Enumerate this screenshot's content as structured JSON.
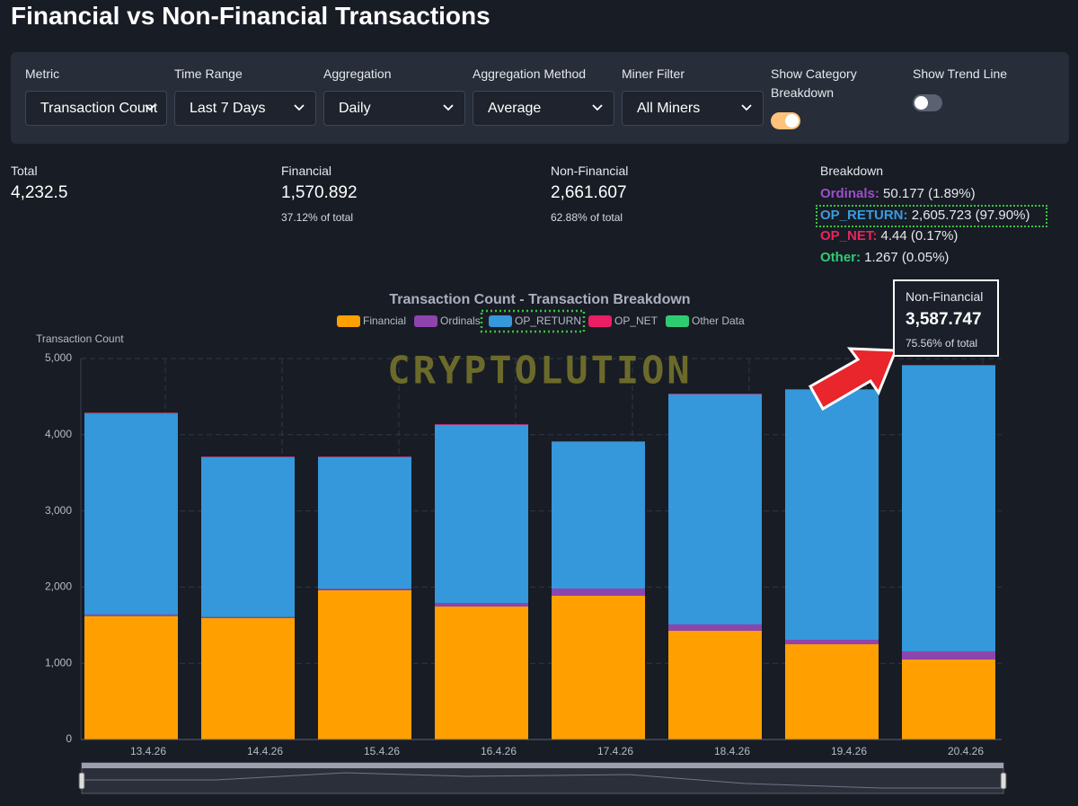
{
  "header": {
    "title": "Financial vs Non-Financial Transactions"
  },
  "controls": [
    {
      "label": "Metric",
      "value": "Transaction Count"
    },
    {
      "label": "Time Range",
      "value": "Last 7 Days"
    },
    {
      "label": "Aggregation",
      "value": "Daily"
    },
    {
      "label": "Aggregation Method",
      "value": "Average"
    },
    {
      "label": "Miner Filter",
      "value": "All Miners"
    }
  ],
  "toggles": [
    {
      "label": "Show Category Breakdown",
      "checked": true
    },
    {
      "label": "Show Trend Line",
      "checked": false
    }
  ],
  "stats": [
    {
      "label": "Total",
      "value": "4,232.5"
    },
    {
      "label": "Financial",
      "value": "1,570.892",
      "sub": "37.12% of total"
    },
    {
      "label": "Non-Financial",
      "value": "2,661.607",
      "sub": "62.88% of total"
    }
  ],
  "breakdown": {
    "label": "Breakdown",
    "items": [
      {
        "name": "Ordinals:",
        "value": "50.177 (1.89%)",
        "color": "#9b4fc9"
      },
      {
        "name": "OP_RETURN:",
        "value": "2,605.723 (97.90%)",
        "color": "#3a9be0"
      },
      {
        "name": "OP_NET:",
        "value": "4.44 (0.17%)",
        "color": "#e9245f"
      },
      {
        "name": "Other:",
        "value": "1.267 (0.05%)",
        "color": "#2ecc71"
      }
    ]
  },
  "tooltip": {
    "label": "Non-Financial",
    "value": "3,587.747",
    "sub": "75.56% of total"
  },
  "chart_data": {
    "type": "bar",
    "stacked": true,
    "title": "Transaction Count - Transaction Breakdown",
    "y_label": "Transaction Count",
    "watermark": "CRYPTOLUTION",
    "legend": "top",
    "grid": true,
    "categories": [
      "13.4.26",
      "14.4.26",
      "15.4.26",
      "16.4.26",
      "17.4.26",
      "18.4.26",
      "19.4.26",
      "20.4.26"
    ],
    "series": [
      {
        "name": "Financial",
        "color": "#ffa000",
        "values": [
          1620,
          1592,
          1958,
          1745,
          1887,
          1427,
          1250,
          1050
        ]
      },
      {
        "name": "Ordinals",
        "color": "#8e44ad",
        "values": [
          20,
          15,
          20,
          47,
          94,
          83,
          59,
          106
        ]
      },
      {
        "name": "OP_RETURN",
        "color": "#3498db",
        "values": [
          2640,
          2100,
          1729,
          2339,
          1926,
          3022,
          3282,
          3753
        ]
      },
      {
        "name": "OP_NET",
        "color": "#e91e63",
        "values": [
          8,
          8,
          8,
          8,
          8,
          8,
          8,
          8
        ]
      },
      {
        "name": "Other Data",
        "color": "#2ecc71",
        "values": [
          2,
          0,
          0,
          0,
          0,
          0,
          0,
          0
        ]
      }
    ],
    "ylim": [
      0,
      5000
    ],
    "yticks": [
      0,
      {
        "value": 1000,
        "label": "1,000"
      },
      {
        "value": 2000,
        "label": "2,000"
      },
      {
        "value": 3000,
        "label": "3,000"
      },
      {
        "value": 4000,
        "label": "4,000"
      },
      {
        "value": 5000,
        "label": "5,000"
      }
    ]
  }
}
